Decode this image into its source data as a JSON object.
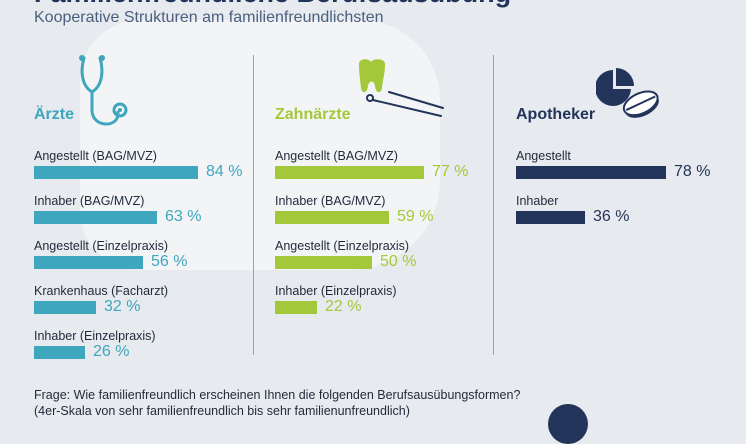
{
  "title": "Familienfreundliche Berufsausübung",
  "subtitle": "Kooperative Strukturen am familienfreundlichsten",
  "colors": {
    "aerzte": "#3ea6bd",
    "zahnaerzte": "#a3c93a",
    "apotheker": "#23345a",
    "icon_aerzte": "stethoscope-icon",
    "icon_zahnaerzte": "tooth-icon",
    "icon_apotheker": "pills-icon"
  },
  "chart_data": [
    {
      "type": "bar",
      "title": "Ärzte",
      "categories": [
        "Angestellt (BAG/MVZ)",
        "Inhaber (BAG/MVZ)",
        "Angestellt (Einzelpraxis)",
        "Krankenhaus (Facharzt)",
        "Inhaber (Einzelpraxis)"
      ],
      "values": [
        84,
        63,
        56,
        32,
        26
      ],
      "value_labels": [
        "84 %",
        "63 %",
        "56 %",
        "32 %",
        "26 %"
      ],
      "unit": "%"
    },
    {
      "type": "bar",
      "title": "Zahnärzte",
      "categories": [
        "Angestellt (BAG/MVZ)",
        "Inhaber (BAG/MVZ)",
        "Angestellt (Einzelpraxis)",
        "Inhaber (Einzelpraxis)"
      ],
      "values": [
        77,
        59,
        50,
        22
      ],
      "value_labels": [
        "77 %",
        "59 %",
        "50 %",
        "22 %"
      ],
      "unit": "%"
    },
    {
      "type": "bar",
      "title": "Apotheker",
      "categories": [
        "Angestellt",
        "Inhaber"
      ],
      "values": [
        78,
        36
      ],
      "value_labels": [
        "78 %",
        "36 %"
      ],
      "unit": "%"
    }
  ],
  "footnote": {
    "line1": "Frage: Wie familienfreundlich erscheinen Ihnen die folgenden Berufsausübungsformen?",
    "line2": " (4er-Skala von sehr familienfreundlich bis sehr familienunfreundlich)"
  }
}
